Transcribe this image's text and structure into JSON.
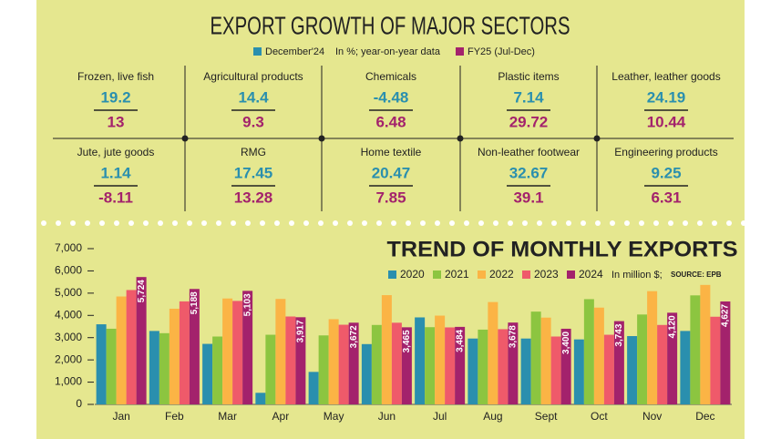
{
  "header": {
    "title": "EXPORT GROWTH OF MAJOR SECTORS",
    "legend_items": [
      {
        "label": "December'24",
        "color": "#2a8fae"
      },
      {
        "label": "FY25 (Jul-Dec)",
        "color": "#a3226c"
      }
    ],
    "note": "In %; year-on-year data"
  },
  "sectors": [
    {
      "name": "Frozen, live fish",
      "december": 19.2,
      "fy25": 13
    },
    {
      "name": "Agricultural products",
      "december": 14.4,
      "fy25": 9.3
    },
    {
      "name": "Chemicals",
      "december": -4.48,
      "fy25": 6.48
    },
    {
      "name": "Plastic items",
      "december": 7.14,
      "fy25": 29.72
    },
    {
      "name": "Leather, leather goods",
      "december": 24.19,
      "fy25": 10.44
    },
    {
      "name": "Jute, jute goods",
      "december": 1.14,
      "fy25": -8.11
    },
    {
      "name": "RMG",
      "december": 17.45,
      "fy25": 13.28
    },
    {
      "name": "Home textile",
      "december": 20.47,
      "fy25": 7.85
    },
    {
      "name": "Non-leather footwear",
      "december": 32.67,
      "fy25": 39.1
    },
    {
      "name": "Engineering products",
      "december": 9.25,
      "fy25": 6.31
    }
  ],
  "chart_data": {
    "type": "bar",
    "title": "TREND OF MONTHLY EXPORTS",
    "unit_note": "In million $;",
    "source": "SOURCE: EPB",
    "categories": [
      "Jan",
      "Feb",
      "Mar",
      "Apr",
      "May",
      "Jun",
      "Jul",
      "Aug",
      "Sept",
      "Oct",
      "Nov",
      "Dec"
    ],
    "series": [
      {
        "name": "2020",
        "color": "#2a8fae",
        "values": [
          3600,
          3300,
          2720,
          520,
          1460,
          2710,
          3910,
          2960,
          2960,
          2920,
          3070,
          3300
        ]
      },
      {
        "name": "2021",
        "color": "#8cc540",
        "values": [
          3400,
          3200,
          3050,
          3130,
          3100,
          3570,
          3470,
          3360,
          4170,
          4730,
          4040,
          4900
        ]
      },
      {
        "name": "2022",
        "color": "#fbb445",
        "values": [
          4850,
          4300,
          4760,
          4740,
          3830,
          4910,
          3990,
          4600,
          3900,
          4350,
          5090,
          5370
        ]
      },
      {
        "name": "2023",
        "color": "#ef5a6a",
        "values": [
          5140,
          4630,
          4650,
          3950,
          3580,
          3670,
          3460,
          3380,
          3050,
          3130,
          3570,
          3940
        ]
      },
      {
        "name": "2024",
        "color": "#a3226c",
        "values": [
          5724,
          5188,
          5103,
          3917,
          3672,
          3465,
          3484,
          3678,
          3400,
          3743,
          4120,
          4627
        ],
        "value_labels": [
          "5,724",
          "5,188",
          "5,103",
          "3,917",
          "3,672",
          "3,465",
          "3,484",
          "3,678",
          "3,400",
          "3,743",
          "4,120",
          "4,627"
        ]
      }
    ],
    "ylim": [
      0,
      7000
    ],
    "yticks": [
      0,
      {
        "value": 1000,
        "label": "1,000"
      },
      {
        "value": 2000,
        "label": "2,000"
      },
      {
        "value": 3000,
        "label": "3,000"
      },
      {
        "value": 4000,
        "label": "4,000"
      },
      {
        "value": 5000,
        "label": "5,000"
      },
      {
        "value": 6000,
        "label": "6,000"
      },
      {
        "value": 7000,
        "label": "7,000"
      }
    ],
    "grid": false
  }
}
